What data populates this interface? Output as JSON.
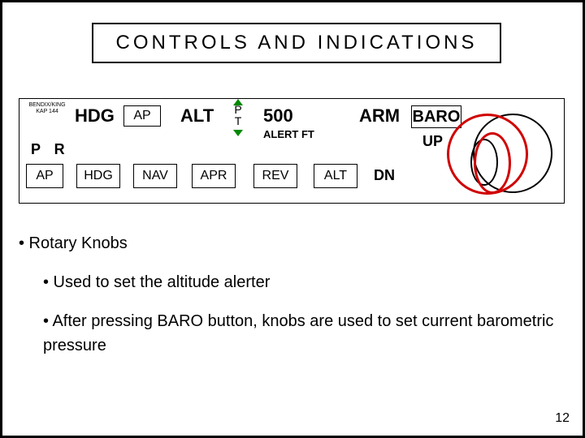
{
  "title": "CONTROLS AND INDICATIONS",
  "brand_line1": "BENDIX/KING",
  "brand_line2": "KAP 144",
  "panel": {
    "hdg": "HDG",
    "ap_pill": "AP",
    "alt": "ALT",
    "pt_p": "P",
    "pt_t": "T",
    "value": "500",
    "alert_ft": "ALERT FT",
    "arm": "ARM",
    "baro": "BARO",
    "up": "UP",
    "pr": "P R",
    "ap_btn": "AP",
    "hdg_btn": "HDG",
    "nav_btn": "NAV",
    "apr_btn": "APR",
    "rev_btn": "REV",
    "alt_btn": "ALT",
    "dn": "DN"
  },
  "bullets": {
    "b1": "• Rotary Knobs",
    "b2": "• Used to set the altitude alerter",
    "b3": "• After pressing BARO button, knobs are used to set current barometric pressure"
  },
  "page_number": "12",
  "colors": {
    "highlight": "#d00000",
    "arrow": "#008800",
    "text": "#000000",
    "bg": "#ffffff"
  }
}
